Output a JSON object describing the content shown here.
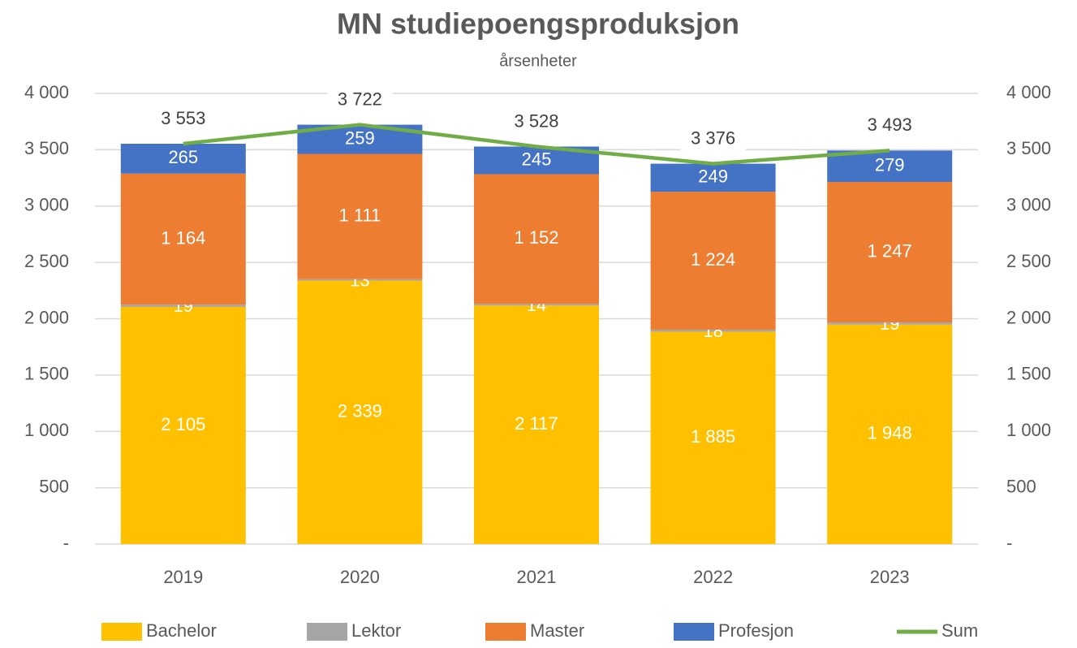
{
  "chart_data": {
    "type": "bar",
    "stacked": true,
    "title": "MN studiepoengsproduksjon",
    "subtitle": "årsenheter",
    "categories": [
      "2019",
      "2020",
      "2021",
      "2022",
      "2023"
    ],
    "series": [
      {
        "name": "Bachelor",
        "color": "#FFC000",
        "values": [
          2105,
          2339,
          2117,
          1885,
          1948
        ],
        "value_labels": [
          "2 105",
          "2 339",
          "2 117",
          "1 885",
          "1 948"
        ]
      },
      {
        "name": "Lektor",
        "color": "#A5A5A5",
        "values": [
          19,
          13,
          14,
          18,
          19
        ]
      },
      {
        "name": "Master",
        "color": "#ED7D31",
        "values": [
          1164,
          1111,
          1152,
          1224,
          1247
        ],
        "value_labels": [
          "1 164",
          "1 111",
          "1 152",
          "1 224",
          "1 247"
        ]
      },
      {
        "name": "Profesjon",
        "color": "#4472C4",
        "values": [
          265,
          259,
          245,
          249,
          279
        ]
      },
      {
        "name": "Sum",
        "color": "#70AD47",
        "type": "line",
        "axis": "y2",
        "values": [
          3553,
          3722,
          3528,
          3376,
          3493
        ],
        "value_labels": [
          "3 553",
          "3 722",
          "3 528",
          "3 376",
          "3 493"
        ]
      }
    ],
    "ylim": [
      0,
      4000
    ],
    "yticks": [
      {
        "value": 0,
        "label": "-"
      },
      500,
      {
        "value": 1000,
        "label": "1 000"
      },
      {
        "value": 1500,
        "label": "1 500"
      },
      {
        "value": 2000,
        "label": "2 000"
      },
      {
        "value": 2500,
        "label": "2 500"
      },
      {
        "value": 3000,
        "label": "3 000"
      },
      {
        "value": 3500,
        "label": "3 500"
      },
      {
        "value": 4000,
        "label": "4 000"
      }
    ],
    "y2lim": [
      0,
      4000
    ],
    "y2ticks": [
      {
        "value": 0,
        "label": "-"
      },
      500,
      {
        "value": 1000,
        "label": "1 000"
      },
      {
        "value": 1500,
        "label": "1 500"
      },
      {
        "value": 2000,
        "label": "2 000"
      },
      {
        "value": 2500,
        "label": "2 500"
      },
      {
        "value": 3000,
        "label": "3 000"
      },
      {
        "value": 3500,
        "label": "3 500"
      },
      {
        "value": 4000,
        "label": "4 000"
      }
    ],
    "grid": true,
    "legend": "bottom"
  }
}
